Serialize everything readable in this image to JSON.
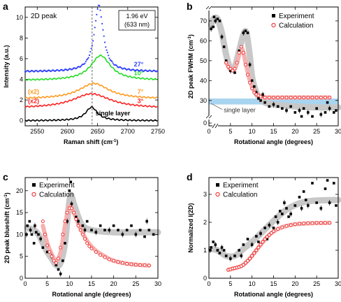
{
  "chart_data": [
    {
      "id": "a",
      "panel_label": "a",
      "type": "line",
      "xlabel": "Raman shift (cm",
      "xlabel_sup": "-1",
      "xlabel_end": ")",
      "ylabel": "Intensity (a.u.)",
      "xlim": [
        2530,
        2750
      ],
      "ylim": [
        -0.5,
        11
      ],
      "xticks": [
        "2550",
        "2600",
        "2650",
        "2700",
        "2750"
      ],
      "yticks": [
        "0",
        "2",
        "4",
        "6",
        "8",
        "10"
      ],
      "inner_title": "2D peak",
      "info_box": [
        "1.96 eV",
        "(633 nm)"
      ],
      "dashed_line_x": 2641,
      "series": [
        {
          "name": "single layer",
          "color": "#000000",
          "offset": 0,
          "center": 2640,
          "width": 12,
          "amp": 1.3,
          "label_x": 2704
        },
        {
          "name": "3°",
          "prefix": "(x2)",
          "color": "#ff2020",
          "offset": 1.2,
          "center": 2640,
          "width": 38,
          "amp": 1.4,
          "label_x": 2726
        },
        {
          "name": "7°",
          "prefix": "(x2)",
          "color": "#ff9a1e",
          "offset": 2.1,
          "center": 2644,
          "width": 30,
          "amp": 1.5,
          "label_x": 2726
        },
        {
          "name": "10°",
          "color": "#22dd22",
          "offset": 3.9,
          "center": 2655,
          "width": 20,
          "amp": 2.4,
          "label_x": 2726
        },
        {
          "name": "27°",
          "color": "#3040ff",
          "offset": 4.75,
          "center": 2652,
          "width": 9,
          "amp": 6.4,
          "label_x": 2726,
          "dotted": true
        }
      ]
    },
    {
      "id": "b",
      "panel_label": "b",
      "type": "scatter",
      "xlabel": "Rotational angle (degrees)",
      "ylabel": "2D peak FWHM (cm",
      "ylabel_sup": "-1",
      "ylabel_end": ")",
      "xlim": [
        0,
        30
      ],
      "ylim": [
        0,
        77
      ],
      "xticks": [
        "0",
        "5",
        "10",
        "15",
        "20",
        "25",
        "30"
      ],
      "yticks": [
        "30",
        "40",
        "50",
        "60",
        "70"
      ],
      "legend": [
        "Experiment",
        "Calculation"
      ],
      "annotation": "single layer",
      "single_layer_band": [
        28,
        31
      ],
      "experiment": [
        [
          0.5,
          66
        ],
        [
          1,
          67
        ],
        [
          1.2,
          72
        ],
        [
          1.5,
          70
        ],
        [
          2,
          71
        ],
        [
          2.5,
          70
        ],
        [
          3,
          62
        ],
        [
          3.5,
          57
        ],
        [
          4,
          50
        ],
        [
          5,
          45
        ],
        [
          6,
          44
        ],
        [
          7,
          55
        ],
        [
          8,
          64
        ],
        [
          8.5,
          65
        ],
        [
          9,
          64
        ],
        [
          9.5,
          48
        ],
        [
          10,
          40
        ],
        [
          10.5,
          37
        ],
        [
          11,
          34
        ],
        [
          11.5,
          31
        ],
        [
          12,
          30
        ],
        [
          12.5,
          33
        ],
        [
          13,
          29
        ],
        [
          14,
          27
        ],
        [
          15,
          28
        ],
        [
          16,
          27
        ],
        [
          17,
          26
        ],
        [
          18,
          25
        ],
        [
          19,
          27
        ],
        [
          20,
          24
        ],
        [
          21,
          25
        ],
        [
          21.5,
          22
        ],
        [
          22,
          26
        ],
        [
          23,
          24
        ],
        [
          24,
          22
        ],
        [
          25,
          26
        ],
        [
          26,
          23
        ],
        [
          27,
          24
        ],
        [
          27.5,
          29
        ],
        [
          28,
          26
        ],
        [
          29,
          24
        ],
        [
          29.5,
          25
        ]
      ],
      "calculation": [
        [
          4,
          49
        ],
        [
          4.5,
          47
        ],
        [
          5,
          46
        ],
        [
          5.5,
          45
        ],
        [
          6,
          46
        ],
        [
          6.5,
          49
        ],
        [
          7,
          54
        ],
        [
          7.5,
          57
        ],
        [
          8,
          54
        ],
        [
          8.5,
          48
        ],
        [
          9,
          43
        ],
        [
          9.5,
          39
        ],
        [
          10,
          36
        ],
        [
          10.5,
          34
        ],
        [
          11,
          33
        ],
        [
          11.5,
          32.5
        ],
        [
          12,
          32
        ],
        [
          13,
          31.5
        ],
        [
          14,
          31.5
        ],
        [
          15,
          31.5
        ],
        [
          16,
          31.5
        ],
        [
          17,
          31.5
        ],
        [
          18,
          31.5
        ],
        [
          19,
          31.5
        ],
        [
          20,
          31.5
        ],
        [
          21,
          31.5
        ],
        [
          22,
          31.5
        ],
        [
          23,
          31.5
        ],
        [
          24,
          31.5
        ],
        [
          25,
          31.5
        ],
        [
          26,
          31.5
        ],
        [
          27,
          31.5
        ],
        [
          28,
          31.5
        ]
      ],
      "trend_exp": [
        [
          0.5,
          68
        ],
        [
          1,
          71
        ],
        [
          2,
          71
        ],
        [
          3,
          64
        ],
        [
          4,
          53
        ],
        [
          5,
          46
        ],
        [
          6,
          47
        ],
        [
          7,
          55
        ],
        [
          8,
          63
        ],
        [
          8.7,
          64
        ],
        [
          9.5,
          52
        ],
        [
          10,
          42
        ],
        [
          11,
          34
        ],
        [
          12,
          31
        ],
        [
          13,
          29
        ],
        [
          15,
          28
        ],
        [
          20,
          27
        ],
        [
          25,
          26.5
        ],
        [
          30,
          26.5
        ]
      ],
      "trend_calc": [
        [
          4,
          49
        ],
        [
          5,
          46
        ],
        [
          6,
          46
        ],
        [
          7,
          53
        ],
        [
          7.7,
          56
        ],
        [
          8.5,
          49
        ],
        [
          9.5,
          40
        ],
        [
          10.5,
          35
        ],
        [
          12,
          32
        ],
        [
          14,
          31.5
        ],
        [
          20,
          31.5
        ],
        [
          28,
          31.5
        ]
      ]
    },
    {
      "id": "c",
      "panel_label": "c",
      "type": "scatter",
      "xlabel": "Rotational angle (degrees)",
      "ylabel": "2D peak blueshift (cm",
      "ylabel_sup": "-1",
      "ylabel_end": ")",
      "xlim": [
        0,
        30
      ],
      "ylim": [
        0,
        23
      ],
      "xticks": [
        "0",
        "5",
        "10",
        "15",
        "20",
        "25",
        "30"
      ],
      "yticks": [
        "0",
        "5",
        "10",
        "15",
        "20"
      ],
      "legend": [
        "Experiment",
        "Calculation"
      ],
      "experiment": [
        [
          0.3,
          10
        ],
        [
          0.5,
          12
        ],
        [
          1,
          13
        ],
        [
          1.2,
          11
        ],
        [
          1.5,
          10
        ],
        [
          2,
          8
        ],
        [
          2.2,
          12
        ],
        [
          2.5,
          10.5
        ],
        [
          3,
          10
        ],
        [
          3.5,
          9
        ],
        [
          4,
          7
        ],
        [
          5,
          6
        ],
        [
          6,
          5
        ],
        [
          7,
          3
        ],
        [
          7.5,
          2
        ],
        [
          8,
          1
        ],
        [
          8.5,
          4
        ],
        [
          9,
          8
        ],
        [
          9.5,
          13
        ],
        [
          10,
          20
        ],
        [
          10.3,
          22
        ],
        [
          10.5,
          17
        ],
        [
          11,
          15
        ],
        [
          11.5,
          14
        ],
        [
          12,
          13
        ],
        [
          12.5,
          11
        ],
        [
          13,
          12
        ],
        [
          13.5,
          11
        ],
        [
          14,
          13
        ],
        [
          15,
          11
        ],
        [
          16,
          10.5
        ],
        [
          17,
          12
        ],
        [
          18,
          11
        ],
        [
          19,
          11
        ],
        [
          20,
          12
        ],
        [
          21,
          11
        ],
        [
          22,
          10
        ],
        [
          23,
          11
        ],
        [
          24,
          12
        ],
        [
          25,
          10
        ],
        [
          26,
          11
        ],
        [
          27,
          9.5
        ],
        [
          27.5,
          13
        ],
        [
          28,
          11
        ],
        [
          29,
          10
        ]
      ],
      "calculation": [
        [
          4,
          13
        ],
        [
          4.5,
          10
        ],
        [
          5,
          7.5
        ],
        [
          5.5,
          6
        ],
        [
          6,
          5
        ],
        [
          6.5,
          4
        ],
        [
          7,
          3.5
        ],
        [
          7.5,
          4.5
        ],
        [
          8,
          7
        ],
        [
          8.5,
          10
        ],
        [
          9,
          13
        ],
        [
          9.5,
          15
        ],
        [
          10,
          16
        ],
        [
          10.5,
          16
        ],
        [
          11,
          15
        ],
        [
          11.5,
          13.5
        ],
        [
          12,
          12
        ],
        [
          12.5,
          11
        ],
        [
          13,
          10
        ],
        [
          13.5,
          9
        ],
        [
          14,
          8
        ],
        [
          14.5,
          7.3
        ],
        [
          15,
          6.8
        ],
        [
          16,
          6
        ],
        [
          17,
          5.3
        ],
        [
          18,
          4.8
        ],
        [
          19,
          4.3
        ],
        [
          20,
          4
        ],
        [
          21,
          3.7
        ],
        [
          22,
          3.5
        ],
        [
          23,
          3.3
        ],
        [
          24,
          3.2
        ],
        [
          25,
          3.1
        ],
        [
          26,
          3
        ],
        [
          27,
          3
        ],
        [
          28,
          2.9
        ]
      ],
      "trend_exp": [
        [
          0.5,
          11.5
        ],
        [
          2,
          11
        ],
        [
          3,
          10
        ],
        [
          4,
          8
        ],
        [
          5,
          6
        ],
        [
          6,
          4.5
        ],
        [
          7,
          3
        ],
        [
          8,
          3.5
        ],
        [
          9,
          8
        ],
        [
          9.7,
          15
        ],
        [
          10.3,
          19
        ],
        [
          11,
          17
        ],
        [
          12,
          14
        ],
        [
          13,
          12
        ],
        [
          15,
          11
        ],
        [
          20,
          10.5
        ],
        [
          25,
          10.5
        ],
        [
          30,
          10.5
        ]
      ],
      "trend_calc": [
        [
          4,
          12
        ],
        [
          5,
          8
        ],
        [
          6,
          5.5
        ],
        [
          7,
          4
        ],
        [
          8,
          6
        ],
        [
          9,
          12
        ],
        [
          10,
          16.5
        ],
        [
          11,
          15
        ],
        [
          12,
          12.5
        ],
        [
          14,
          8.5
        ],
        [
          16,
          6.3
        ],
        [
          18,
          5
        ],
        [
          20,
          4
        ],
        [
          24,
          3.2
        ],
        [
          28,
          2.9
        ]
      ]
    },
    {
      "id": "d",
      "panel_label": "d",
      "type": "scatter",
      "xlabel": "Rotational angle (degrees)",
      "ylabel": "Normalized I(2D)",
      "xlim": [
        0,
        30
      ],
      "ylim": [
        0,
        3.6
      ],
      "xticks": [
        "0",
        "5",
        "10",
        "15",
        "20",
        "25",
        "30"
      ],
      "yticks": [
        "0",
        "1",
        "2",
        "3"
      ],
      "legend": [
        "Experiment",
        "Calculation"
      ],
      "experiment": [
        [
          0.3,
          1
        ],
        [
          0.5,
          1.1
        ],
        [
          1,
          1.3
        ],
        [
          1.5,
          1.2
        ],
        [
          2,
          1
        ],
        [
          2.5,
          0.9
        ],
        [
          3,
          1.1
        ],
        [
          3.5,
          1
        ],
        [
          4,
          0.8
        ],
        [
          5,
          0.7
        ],
        [
          6,
          0.8
        ],
        [
          7,
          1
        ],
        [
          7.5,
          0.8
        ],
        [
          8,
          1.2
        ],
        [
          9,
          1.4
        ],
        [
          10,
          1.2
        ],
        [
          11,
          1.5
        ],
        [
          11.5,
          1.3
        ],
        [
          12,
          1.6
        ],
        [
          13,
          1.8
        ],
        [
          13.5,
          1.4
        ],
        [
          14,
          1.9
        ],
        [
          15,
          1.8
        ],
        [
          15.5,
          2.2
        ],
        [
          16,
          2
        ],
        [
          16.5,
          2.4
        ],
        [
          17,
          2.3
        ],
        [
          17.5,
          2.7
        ],
        [
          18,
          2.5
        ],
        [
          18.5,
          2.2
        ],
        [
          19,
          2.3
        ],
        [
          20,
          2.6
        ],
        [
          21,
          2.9
        ],
        [
          21.5,
          2.5
        ],
        [
          22,
          3.1
        ],
        [
          22.5,
          2.8
        ],
        [
          23,
          2.6
        ],
        [
          24,
          3.4
        ],
        [
          25,
          2.7
        ],
        [
          26,
          2.5
        ],
        [
          27,
          3.2
        ],
        [
          27.5,
          3.5
        ],
        [
          28,
          2.7
        ],
        [
          29,
          3.4
        ],
        [
          29.5,
          2.6
        ]
      ],
      "calculation": [
        [
          4.5,
          0.3
        ],
        [
          5,
          0.32
        ],
        [
          5.5,
          0.35
        ],
        [
          6,
          0.36
        ],
        [
          6.5,
          0.38
        ],
        [
          7,
          0.4
        ],
        [
          7.5,
          0.43
        ],
        [
          8,
          0.48
        ],
        [
          8.5,
          0.55
        ],
        [
          9,
          0.62
        ],
        [
          9.5,
          0.7
        ],
        [
          10,
          0.8
        ],
        [
          10.5,
          0.9
        ],
        [
          11,
          1
        ],
        [
          11.5,
          1.1
        ],
        [
          12,
          1.2
        ],
        [
          12.5,
          1.3
        ],
        [
          13,
          1.4
        ],
        [
          13.5,
          1.48
        ],
        [
          14,
          1.55
        ],
        [
          14.5,
          1.62
        ],
        [
          15,
          1.68
        ],
        [
          16,
          1.76
        ],
        [
          17,
          1.82
        ],
        [
          18,
          1.87
        ],
        [
          19,
          1.9
        ],
        [
          20,
          1.93
        ],
        [
          21,
          1.95
        ],
        [
          22,
          1.96
        ],
        [
          23,
          1.97
        ],
        [
          24,
          1.97
        ],
        [
          25,
          1.98
        ],
        [
          26,
          1.98
        ],
        [
          27,
          1.98
        ],
        [
          28,
          1.98
        ]
      ],
      "trend_exp": [
        [
          0.5,
          1.05
        ],
        [
          2,
          1
        ],
        [
          4,
          0.8
        ],
        [
          6,
          0.8
        ],
        [
          8,
          1.05
        ],
        [
          10,
          1.3
        ],
        [
          12,
          1.6
        ],
        [
          14,
          1.9
        ],
        [
          16,
          2.2
        ],
        [
          18,
          2.45
        ],
        [
          20,
          2.62
        ],
        [
          22,
          2.72
        ],
        [
          25,
          2.78
        ],
        [
          30,
          2.8
        ]
      ],
      "trend_calc": [
        [
          4.5,
          0.3
        ],
        [
          6,
          0.36
        ],
        [
          8,
          0.48
        ],
        [
          10,
          0.8
        ],
        [
          12,
          1.2
        ],
        [
          14,
          1.55
        ],
        [
          16,
          1.76
        ],
        [
          18,
          1.87
        ],
        [
          20,
          1.93
        ],
        [
          24,
          1.97
        ],
        [
          28,
          1.98
        ]
      ]
    }
  ]
}
